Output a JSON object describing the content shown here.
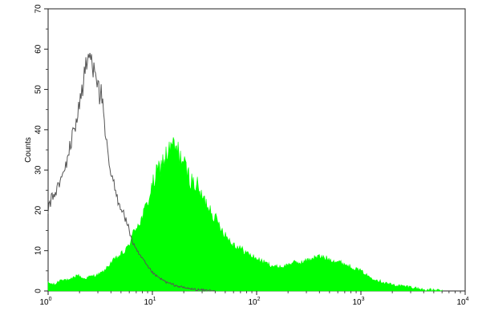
{
  "chart_data": {
    "type": "area",
    "title": "",
    "xlabel": "",
    "ylabel": "Counts",
    "xscale": "log",
    "xlim": [
      1,
      10000
    ],
    "ylim": [
      0,
      70
    ],
    "grid": false,
    "legend": "none",
    "colors": {
      "control": "#555555",
      "sample": "#00ff00"
    },
    "x_ticks": [
      {
        "value": 1,
        "base": "10",
        "exp": "0"
      },
      {
        "value": 10,
        "base": "10",
        "exp": "1"
      },
      {
        "value": 100,
        "base": "10",
        "exp": "2"
      },
      {
        "value": 1000,
        "base": "10",
        "exp": "3"
      },
      {
        "value": 10000,
        "base": "10",
        "exp": "4"
      }
    ],
    "y_ticks": [
      {
        "value": 0,
        "label": "0"
      },
      {
        "value": 10,
        "label": "10"
      },
      {
        "value": 20,
        "label": "20"
      },
      {
        "value": 30,
        "label": "30"
      },
      {
        "value": 40,
        "label": "40"
      },
      {
        "value": 50,
        "label": "50"
      },
      {
        "value": 60,
        "label": "60"
      },
      {
        "value": 70,
        "label": "70"
      }
    ],
    "series": [
      {
        "style": "line",
        "color": "#555555",
        "points": [
          [
            1.0,
            20
          ],
          [
            1.08,
            23
          ],
          [
            1.15,
            24
          ],
          [
            1.25,
            26
          ],
          [
            1.35,
            28
          ],
          [
            1.45,
            30
          ],
          [
            1.55,
            34
          ],
          [
            1.65,
            36
          ],
          [
            1.75,
            40
          ],
          [
            1.85,
            42
          ],
          [
            1.95,
            45
          ],
          [
            2.05,
            48
          ],
          [
            2.15,
            51
          ],
          [
            2.25,
            54
          ],
          [
            2.4,
            57
          ],
          [
            2.5,
            59
          ],
          [
            2.65,
            56
          ],
          [
            2.8,
            57
          ],
          [
            2.95,
            53
          ],
          [
            3.1,
            48
          ],
          [
            3.25,
            50
          ],
          [
            3.4,
            42
          ],
          [
            3.6,
            37
          ],
          [
            3.8,
            32
          ],
          [
            4.0,
            29
          ],
          [
            4.3,
            26
          ],
          [
            4.6,
            23
          ],
          [
            5.0,
            21
          ],
          [
            5.5,
            18
          ],
          [
            6.0,
            15
          ],
          [
            6.5,
            12
          ],
          [
            7.0,
            10
          ],
          [
            8.0,
            8
          ],
          [
            9.0,
            6
          ],
          [
            10.5,
            4
          ],
          [
            12.0,
            3
          ],
          [
            14.0,
            2
          ],
          [
            17.0,
            1.3
          ],
          [
            20.0,
            0.8
          ],
          [
            25.0,
            0.4
          ],
          [
            30.0,
            0.2
          ],
          [
            40.0,
            0
          ]
        ]
      },
      {
        "style": "filled",
        "color": "#00ff00",
        "points": [
          [
            1.0,
            2
          ],
          [
            1.15,
            1.5
          ],
          [
            1.35,
            3
          ],
          [
            1.6,
            2.5
          ],
          [
            1.9,
            4
          ],
          [
            2.2,
            3
          ],
          [
            2.5,
            3.5
          ],
          [
            3.0,
            4
          ],
          [
            3.5,
            5
          ],
          [
            4.0,
            7
          ],
          [
            4.5,
            8
          ],
          [
            5.0,
            9
          ],
          [
            5.6,
            10
          ],
          [
            6.3,
            13
          ],
          [
            7.0,
            16
          ],
          [
            8.0,
            18
          ],
          [
            9.0,
            22
          ],
          [
            10.0,
            26
          ],
          [
            11.0,
            29
          ],
          [
            12.5,
            32
          ],
          [
            14.0,
            34
          ],
          [
            15.5,
            36
          ],
          [
            17.0,
            35
          ],
          [
            19.0,
            33
          ],
          [
            21.0,
            30
          ],
          [
            24.0,
            27
          ],
          [
            27.0,
            26
          ],
          [
            30.0,
            23
          ],
          [
            35.0,
            21
          ],
          [
            40.0,
            18
          ],
          [
            45.0,
            16
          ],
          [
            50.0,
            14
          ],
          [
            57.0,
            12
          ],
          [
            65.0,
            11
          ],
          [
            75.0,
            10
          ],
          [
            85.0,
            9
          ],
          [
            100.0,
            8
          ],
          [
            120.0,
            7
          ],
          [
            150.0,
            6
          ],
          [
            180.0,
            6
          ],
          [
            220.0,
            7
          ],
          [
            270.0,
            7
          ],
          [
            330.0,
            8
          ],
          [
            400.0,
            8.5
          ],
          [
            480.0,
            8
          ],
          [
            560.0,
            7.5
          ],
          [
            650.0,
            7
          ],
          [
            800.0,
            6
          ],
          [
            1000.0,
            5
          ],
          [
            1200.0,
            3.5
          ],
          [
            1500.0,
            2.5
          ],
          [
            2000.0,
            1.5
          ],
          [
            2500.0,
            1.2
          ],
          [
            3000.0,
            1
          ],
          [
            3500.0,
            0.6
          ],
          [
            4000.0,
            0.3
          ],
          [
            5000.0,
            0.2
          ],
          [
            6000.0,
            0
          ]
        ]
      }
    ]
  }
}
